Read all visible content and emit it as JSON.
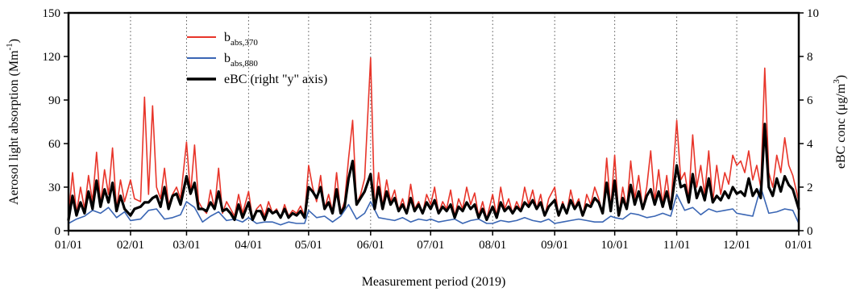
{
  "chart_data": {
    "type": "line",
    "title": "",
    "xlabel": "Measurement period (2019)",
    "ylabel_left": "Aerosol light absorption (Mm",
    "ylabel_left_sup": "-1",
    "ylabel_left_close": ")",
    "ylabel_right": "eBC conc (μg/m",
    "ylabel_right_sup": "3",
    "ylabel_right_close": ")",
    "x_tick_labels": [
      "01/01",
      "02/01",
      "03/01",
      "04/01",
      "05/01",
      "06/01",
      "07/01",
      "08/01",
      "09/01",
      "10/01",
      "11/01",
      "12/01",
      "01/01"
    ],
    "x_tick_days": [
      0,
      31,
      59,
      90,
      120,
      151,
      181,
      212,
      243,
      273,
      304,
      334,
      365
    ],
    "x_range_days": [
      0,
      365
    ],
    "ylim_left": [
      0,
      150
    ],
    "yticks_left": [
      0,
      30,
      60,
      90,
      120,
      150
    ],
    "ylim_right": [
      0,
      10
    ],
    "yticks_right": [
      0,
      2,
      4,
      6,
      8,
      10
    ],
    "grid": "vertical dotted lines at month boundaries",
    "legend_position": "top-left",
    "legend": [
      {
        "base": "b",
        "sub": "abs,370",
        "color": "#e8352a",
        "text": ""
      },
      {
        "base": "b",
        "sub": "abs,880",
        "color": "#3a66b4",
        "text": ""
      },
      {
        "base": "",
        "sub": "",
        "color": "#000000",
        "text": "eBC (right \"y\" axis)"
      }
    ],
    "series": [
      {
        "name": "b_abs,370",
        "axis": "left",
        "color": "#e8352a",
        "x": [
          0,
          2,
          4,
          6,
          8,
          10,
          12,
          14,
          16,
          18,
          20,
          22,
          24,
          26,
          28,
          31,
          33,
          36,
          38,
          40,
          42,
          44,
          46,
          48,
          50,
          52,
          54,
          56,
          59,
          61,
          63,
          65,
          67,
          69,
          71,
          73,
          75,
          77,
          79,
          81,
          83,
          85,
          87,
          90,
          92,
          94,
          96,
          98,
          100,
          102,
          104,
          106,
          108,
          110,
          112,
          114,
          116,
          118,
          120,
          122,
          124,
          126,
          128,
          130,
          132,
          134,
          136,
          138,
          140,
          142,
          144,
          146,
          148,
          151,
          153,
          155,
          157,
          159,
          161,
          163,
          165,
          167,
          169,
          171,
          173,
          175,
          177,
          179,
          181,
          183,
          185,
          187,
          189,
          191,
          193,
          195,
          197,
          199,
          201,
          203,
          205,
          207,
          209,
          212,
          214,
          216,
          218,
          220,
          222,
          224,
          226,
          228,
          230,
          232,
          234,
          236,
          238,
          240,
          243,
          245,
          247,
          249,
          251,
          253,
          255,
          257,
          259,
          261,
          263,
          265,
          267,
          269,
          271,
          273,
          275,
          277,
          279,
          281,
          283,
          285,
          287,
          289,
          291,
          293,
          295,
          297,
          299,
          301,
          304,
          306,
          308,
          310,
          312,
          314,
          316,
          318,
          320,
          322,
          324,
          326,
          328,
          330,
          332,
          334,
          336,
          338,
          340,
          342,
          344,
          346,
          348,
          350,
          352,
          354,
          356,
          358,
          360,
          362,
          365
        ],
        "y": [
          10,
          40,
          12,
          30,
          15,
          38,
          20,
          54,
          18,
          42,
          25,
          57,
          15,
          35,
          20,
          35,
          22,
          20,
          92,
          25,
          86,
          30,
          22,
          43,
          18,
          25,
          30,
          22,
          61,
          25,
          59,
          20,
          15,
          12,
          28,
          15,
          43,
          12,
          20,
          15,
          10,
          25,
          12,
          27,
          8,
          15,
          18,
          10,
          20,
          12,
          15,
          9,
          18,
          10,
          14,
          12,
          17,
          10,
          45,
          30,
          20,
          38,
          15,
          25,
          13,
          40,
          12,
          20,
          50,
          76,
          18,
          25,
          36,
          119,
          15,
          40,
          17,
          35,
          20,
          28,
          14,
          22,
          12,
          32,
          15,
          20,
          12,
          25,
          18,
          30,
          12,
          20,
          15,
          28,
          10,
          22,
          15,
          30,
          18,
          26,
          10,
          20,
          8,
          25,
          10,
          30,
          15,
          22,
          12,
          20,
          14,
          30,
          18,
          28,
          15,
          25,
          10,
          22,
          30,
          10,
          20,
          12,
          28,
          16,
          22,
          10,
          25,
          18,
          30,
          22,
          12,
          50,
          15,
          52,
          10,
          30,
          15,
          48,
          22,
          38,
          15,
          30,
          55,
          20,
          42,
          18,
          38,
          15,
          76,
          35,
          40,
          22,
          66,
          30,
          45,
          25,
          55,
          20,
          45,
          25,
          40,
          32,
          52,
          45,
          48,
          40,
          55,
          35,
          45,
          30,
          112,
          40,
          30,
          52,
          40,
          64,
          45,
          38,
          20
        ]
      },
      {
        "name": "b_abs,880",
        "axis": "left",
        "color": "#3a66b4",
        "x": [
          0,
          4,
          8,
          12,
          16,
          20,
          24,
          28,
          31,
          36,
          40,
          44,
          48,
          52,
          56,
          59,
          63,
          67,
          71,
          75,
          79,
          83,
          87,
          90,
          94,
          98,
          102,
          106,
          110,
          114,
          118,
          120,
          124,
          128,
          132,
          136,
          140,
          144,
          148,
          151,
          155,
          159,
          163,
          167,
          171,
          175,
          179,
          181,
          185,
          189,
          193,
          197,
          201,
          205,
          209,
          212,
          216,
          220,
          224,
          228,
          232,
          236,
          240,
          243,
          247,
          251,
          255,
          259,
          263,
          267,
          271,
          273,
          277,
          281,
          285,
          289,
          293,
          297,
          301,
          304,
          308,
          312,
          316,
          320,
          324,
          328,
          332,
          334,
          338,
          342,
          346,
          350,
          354,
          358,
          362,
          365
        ],
        "y": [
          5,
          8,
          10,
          14,
          12,
          16,
          9,
          13,
          7,
          8,
          14,
          15,
          8,
          9,
          11,
          20,
          16,
          6,
          10,
          13,
          7,
          8,
          6,
          9,
          5,
          6,
          6,
          4,
          6,
          5,
          5,
          14,
          9,
          10,
          6,
          10,
          18,
          8,
          12,
          20,
          9,
          8,
          7,
          9,
          6,
          8,
          7,
          8,
          6,
          7,
          8,
          5,
          7,
          8,
          5,
          5,
          7,
          6,
          7,
          9,
          7,
          6,
          8,
          5,
          6,
          7,
          8,
          7,
          6,
          6,
          10,
          9,
          8,
          12,
          11,
          9,
          10,
          12,
          10,
          25,
          14,
          16,
          11,
          15,
          13,
          14,
          15,
          12,
          11,
          10,
          30,
          12,
          13,
          15,
          14,
          5
        ]
      },
      {
        "name": "eBC (right \"y\" axis)",
        "axis": "right",
        "color": "#000000",
        "x": [
          0,
          2,
          4,
          6,
          8,
          10,
          12,
          14,
          16,
          18,
          20,
          22,
          24,
          26,
          28,
          31,
          33,
          36,
          38,
          40,
          42,
          44,
          46,
          48,
          50,
          52,
          54,
          56,
          59,
          61,
          63,
          65,
          67,
          69,
          71,
          73,
          75,
          77,
          79,
          81,
          83,
          85,
          87,
          90,
          92,
          94,
          96,
          98,
          100,
          102,
          104,
          106,
          108,
          110,
          112,
          114,
          116,
          118,
          120,
          122,
          124,
          126,
          128,
          130,
          132,
          134,
          136,
          138,
          140,
          142,
          144,
          146,
          148,
          151,
          153,
          155,
          157,
          159,
          161,
          163,
          165,
          167,
          169,
          171,
          173,
          175,
          177,
          179,
          181,
          183,
          185,
          187,
          189,
          191,
          193,
          195,
          197,
          199,
          201,
          203,
          205,
          207,
          209,
          212,
          214,
          216,
          218,
          220,
          222,
          224,
          226,
          228,
          230,
          232,
          234,
          236,
          238,
          240,
          243,
          245,
          247,
          249,
          251,
          253,
          255,
          257,
          259,
          261,
          263,
          265,
          267,
          269,
          271,
          273,
          275,
          277,
          279,
          281,
          283,
          285,
          287,
          289,
          291,
          293,
          295,
          297,
          299,
          301,
          304,
          306,
          308,
          310,
          312,
          314,
          316,
          318,
          320,
          322,
          324,
          326,
          328,
          330,
          332,
          334,
          336,
          338,
          340,
          342,
          344,
          346,
          348,
          350,
          352,
          354,
          356,
          358,
          360,
          362,
          365
        ],
        "y": [
          0.5,
          1.6,
          0.7,
          1.3,
          0.8,
          1.8,
          1.0,
          2.3,
          1.1,
          1.9,
          1.3,
          2.2,
          0.9,
          1.6,
          1.0,
          0.7,
          1.0,
          1.1,
          1.3,
          1.3,
          1.5,
          1.6,
          1.1,
          2.0,
          1.0,
          1.6,
          1.7,
          1.2,
          2.5,
          1.7,
          2.2,
          1.0,
          1.0,
          0.9,
          1.3,
          1.0,
          1.8,
          0.9,
          1.0,
          0.8,
          0.5,
          1.2,
          0.6,
          1.3,
          0.5,
          0.9,
          0.9,
          0.5,
          1.0,
          0.8,
          0.9,
          0.6,
          1.0,
          0.6,
          0.8,
          0.7,
          0.9,
          0.6,
          2.0,
          1.8,
          1.5,
          2.0,
          1.0,
          1.3,
          0.8,
          1.9,
          0.8,
          1.1,
          2.4,
          3.2,
          1.2,
          1.5,
          1.8,
          2.6,
          1.0,
          2.0,
          1.0,
          1.8,
          1.2,
          1.5,
          0.9,
          1.2,
          0.8,
          1.5,
          0.9,
          1.2,
          0.8,
          1.3,
          1.0,
          1.4,
          0.8,
          1.1,
          0.9,
          1.2,
          0.6,
          1.1,
          0.9,
          1.3,
          1.0,
          1.2,
          0.6,
          1.0,
          0.5,
          1.1,
          0.6,
          1.3,
          0.9,
          1.1,
          0.8,
          1.1,
          0.9,
          1.3,
          1.1,
          1.4,
          1.0,
          1.3,
          0.7,
          1.1,
          1.4,
          0.7,
          1.2,
          0.8,
          1.4,
          1.0,
          1.3,
          0.7,
          1.2,
          1.1,
          1.5,
          1.3,
          0.8,
          2.2,
          0.9,
          2.3,
          0.7,
          1.5,
          1.0,
          2.1,
          1.2,
          1.8,
          1.0,
          1.6,
          1.9,
          1.2,
          1.8,
          1.1,
          1.8,
          1.0,
          3.0,
          2.0,
          2.1,
          1.3,
          2.6,
          1.5,
          2.0,
          1.4,
          2.4,
          1.3,
          1.6,
          1.4,
          1.8,
          1.5,
          2.0,
          1.7,
          1.8,
          1.6,
          2.4,
          1.6,
          1.9,
          1.5,
          4.9,
          2.0,
          1.6,
          2.4,
          1.8,
          2.5,
          2.1,
          1.9,
          1.0
        ]
      }
    ]
  }
}
